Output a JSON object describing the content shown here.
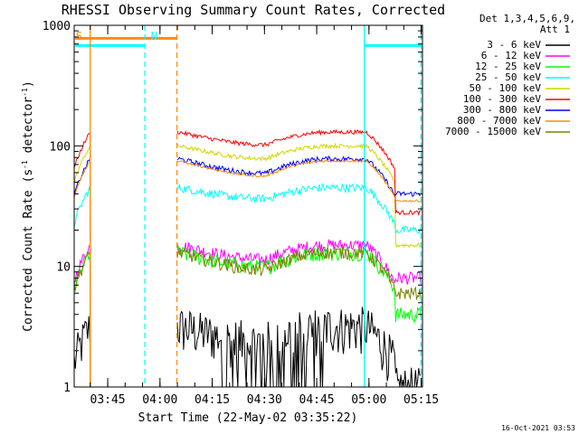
{
  "chart_data": {
    "type": "line",
    "title": "RHESSI Observing Summary Count Rates, Corrected",
    "xlabel": "Start Time (22-May-02 03:35:22)",
    "ylabel_main": "Corrected Count Rate (s",
    "ylabel_sup1": "-1",
    "ylabel_mid": " detector",
    "ylabel_sup2": "-1",
    "ylabel_end": ")",
    "ylog": true,
    "ylim": [
      1,
      1000
    ],
    "xlim_minutes": [
      0,
      100
    ],
    "x_ticks": [
      {
        "label": "03:45",
        "min": 9.63
      },
      {
        "label": "04:00",
        "min": 24.63
      },
      {
        "label": "04:15",
        "min": 39.63
      },
      {
        "label": "04:30",
        "min": 54.63
      },
      {
        "label": "04:45",
        "min": 69.63
      },
      {
        "label": "05:00",
        "min": 84.63
      },
      {
        "label": "05:15",
        "min": 99.63
      }
    ],
    "y_ticks": [
      {
        "label": "1",
        "value": 1
      },
      {
        "label": "10",
        "value": 10
      },
      {
        "label": "100",
        "value": 100
      },
      {
        "label": "1000",
        "value": 1000
      }
    ],
    "legend_header": [
      "Det 1,3,4,5,6,9,",
      "Att 1"
    ],
    "series": [
      {
        "name": "3 - 6 keV",
        "color": "#000000"
      },
      {
        "name": "6 - 12 keV",
        "color": "#ff00ff"
      },
      {
        "name": "12 - 25 keV",
        "color": "#00ff00"
      },
      {
        "name": "25 - 50 keV",
        "color": "#00ffff"
      },
      {
        "name": "50 - 100 keV",
        "color": "#d4d400"
      },
      {
        "name": "100 - 300 keV",
        "color": "#ff0000"
      },
      {
        "name": "300 - 800 keV",
        "color": "#0000ff"
      },
      {
        "name": "800 - 7000 keV",
        "color": "#ff8c00"
      },
      {
        "name": "7000 - 15000 keV",
        "color": "#808000"
      }
    ],
    "annotations": [
      {
        "label": "S",
        "color": "#ff8c00",
        "min": 0.5
      },
      {
        "label": "N",
        "color": "#00ffff",
        "min": 22.0
      }
    ],
    "saa_bars": [
      {
        "color": "#ff8c00",
        "value": 780,
        "from": 0.3,
        "to": 29.5
      },
      {
        "color": "#00ffff",
        "value": 680,
        "from": 0.3,
        "to": 20.3
      },
      {
        "color": "#00ffff",
        "value": 680,
        "from": 83.3,
        "to": 99.6
      }
    ],
    "vlines": [
      {
        "min": 4.6,
        "color": "#ff8c00",
        "dashed": false
      },
      {
        "min": 20.3,
        "color": "#00ffff",
        "dashed": true
      },
      {
        "min": 29.5,
        "color": "#ff8c00",
        "dashed": true
      },
      {
        "min": 83.3,
        "color": "#00ffff",
        "dashed": false
      },
      {
        "min": 99.6,
        "color": "#00ffff",
        "dashed": true
      }
    ],
    "timestamp": "16-Oct-2021 03:53"
  }
}
